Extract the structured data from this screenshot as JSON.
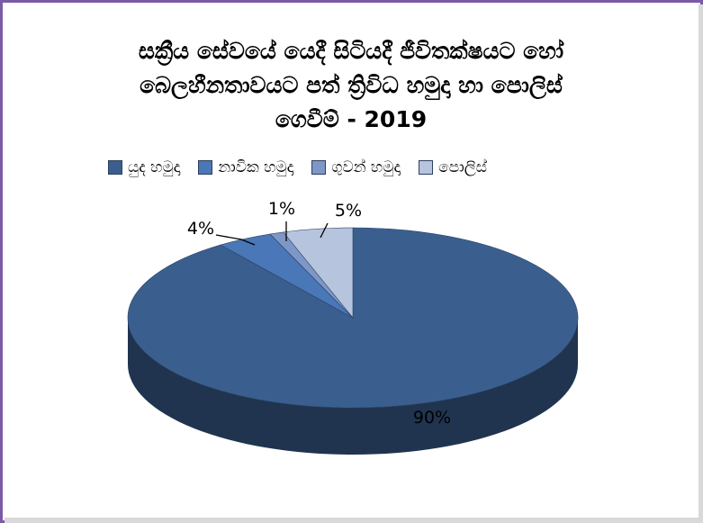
{
  "chart_data": {
    "type": "pie",
    "title_lines": [
      "සක්‍රීය සේවයේ යෙදී සිටියදී ජීවිතක්ෂයට හෝ",
      "බෙලහීනතාවයට පත් ත්‍රිවිධ හමුදා හා පොලිස්",
      "ගෙවීම් - 2019"
    ],
    "categories": [
      "යුද හමුදා",
      "නාවික හමුදා",
      "ගුවන් හමුදා",
      "පොලිස්"
    ],
    "values": [
      90,
      4,
      1,
      5
    ],
    "labels": [
      "90%",
      "4%",
      "1%",
      "5%"
    ],
    "colors": [
      "#3a5f8f",
      "#4a77b8",
      "#7e97c6",
      "#b7c4dd"
    ],
    "legend_position": "top",
    "style": "3d"
  }
}
